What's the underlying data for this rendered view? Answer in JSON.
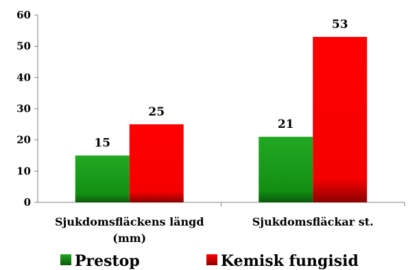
{
  "chart_data": {
    "type": "bar",
    "categories": [
      [
        "Sjukdomsfläckens längd",
        "(mm)"
      ],
      [
        "Sjukdomsfläckar st."
      ]
    ],
    "series": [
      {
        "name": "Prestop",
        "values": [
          15,
          21
        ],
        "color": "#1a9a1a"
      },
      {
        "name": "Kemisk fungisid",
        "values": [
          25,
          53
        ],
        "color": "#ff0000"
      }
    ],
    "ylim": [
      0,
      60
    ],
    "yticks": [
      0,
      10,
      20,
      30,
      40,
      50,
      60
    ],
    "grid": false,
    "legend_position": "bottom",
    "data_labels": true
  }
}
